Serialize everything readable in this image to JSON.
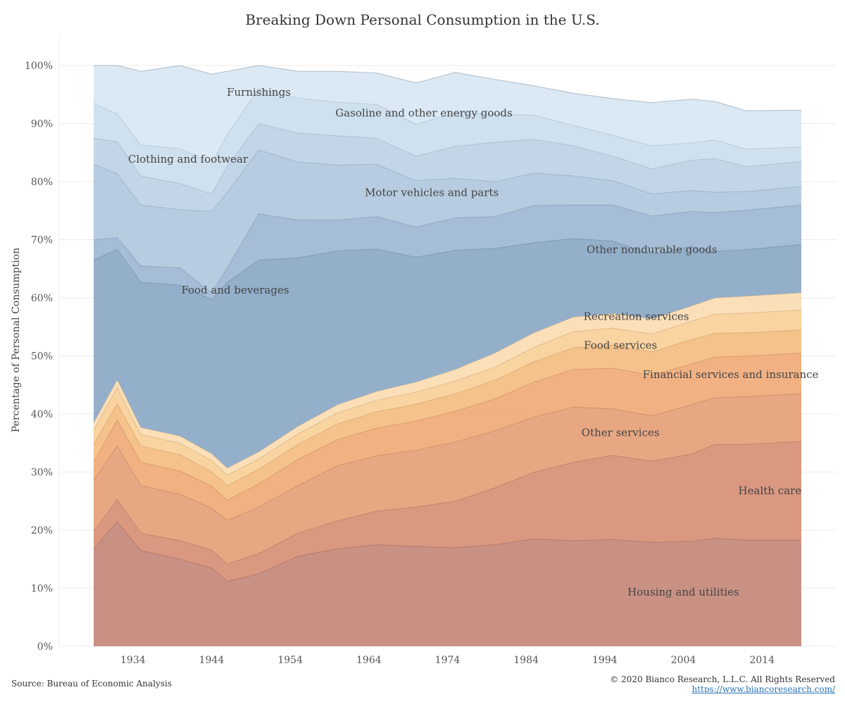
{
  "title": "Breaking Down Personal Consumption in the U.S.",
  "source": "Source: Bureau of Economic Analysis",
  "copyright": "© 2020 Bianco Research, L.L.C. All Rights Reserved",
  "url": "https://www.biancoresearch.com/",
  "chart_data": {
    "type": "area",
    "stacked": true,
    "normalized": true,
    "title": "Breaking Down Personal Consumption in the U.S.",
    "ylabel": "Percentage of Personal Consumption",
    "xlabel": "",
    "xlim": [
      1929,
      2019
    ],
    "ylim": [
      0,
      100
    ],
    "x_ticks": [
      1934,
      1944,
      1954,
      1964,
      1974,
      1984,
      1994,
      2004,
      2014
    ],
    "y_ticks": [
      "0%",
      "10%",
      "20%",
      "30%",
      "40%",
      "50%",
      "60%",
      "70%",
      "80%",
      "90%",
      "100%"
    ],
    "grid": "horizontal",
    "x": [
      1929,
      1932,
      1935,
      1940,
      1944,
      1946,
      1950,
      1955,
      1960,
      1965,
      1970,
      1975,
      1980,
      1985,
      1990,
      1995,
      2000,
      2005,
      2008,
      2012,
      2019
    ],
    "series": [
      {
        "name": "Housing and utilities",
        "color": "#c4887a",
        "values": [
          16.8,
          21.5,
          16.5,
          15.0,
          13.5,
          11.2,
          12.5,
          15.5,
          16.8,
          17.5,
          17.2,
          17.0,
          17.5,
          18.5,
          18.2,
          18.4,
          17.9,
          18.1,
          18.6,
          18.3,
          18.3
        ]
      },
      {
        "name": "Health care",
        "color": "#d78f76",
        "values": [
          3.0,
          3.8,
          3.0,
          3.2,
          3.1,
          3.0,
          3.5,
          4.0,
          4.8,
          5.8,
          6.8,
          8.0,
          9.8,
          11.5,
          13.5,
          14.5,
          14.0,
          15.0,
          16.2,
          16.5,
          17.0
        ]
      },
      {
        "name": "Other services",
        "color": "#e6a078",
        "values": [
          8.8,
          9.2,
          8.2,
          8.0,
          7.2,
          7.5,
          8.0,
          8.2,
          9.5,
          9.5,
          9.8,
          10.2,
          9.8,
          9.5,
          9.5,
          8.0,
          7.8,
          8.5,
          8.0,
          8.2,
          8.2
        ]
      },
      {
        "name": "Financial services and insurance",
        "color": "#f0aa78",
        "values": [
          3.2,
          4.5,
          4.0,
          4.0,
          3.8,
          3.5,
          4.0,
          4.5,
          4.5,
          4.8,
          5.0,
          5.3,
          5.5,
          6.0,
          6.5,
          7.0,
          7.0,
          7.0,
          7.0,
          7.0,
          7.0
        ]
      },
      {
        "name": "Food services",
        "color": "#f5bd82",
        "values": [
          3.0,
          2.8,
          2.8,
          2.8,
          2.5,
          2.5,
          2.5,
          2.6,
          2.7,
          2.8,
          2.9,
          3.0,
          3.2,
          3.5,
          3.7,
          3.9,
          4.0,
          4.2,
          4.1,
          4.0,
          4.0
        ]
      },
      {
        "name": "Recreation services",
        "color": "#f8cf98",
        "values": [
          2.5,
          2.8,
          2.0,
          2.0,
          1.9,
          1.8,
          1.8,
          1.8,
          1.9,
          2.0,
          2.1,
          2.2,
          2.3,
          2.5,
          2.8,
          3.0,
          3.1,
          3.2,
          3.3,
          3.4,
          3.4
        ]
      },
      {
        "name": "Other nondurable goods",
        "color": "#fbdcb2",
        "values": [
          1.2,
          1.3,
          1.2,
          1.2,
          1.2,
          1.2,
          1.2,
          1.3,
          1.4,
          1.5,
          1.7,
          2.0,
          2.4,
          2.5,
          2.5,
          2.5,
          2.6,
          2.6,
          2.8,
          2.9,
          3.0
        ]
      },
      {
        "name": "Food and beverages",
        "color": "#8ba8c6",
        "values": [
          28.0,
          22.5,
          25.0,
          26.0,
          26.5,
          32.0,
          33.0,
          29.0,
          26.5,
          24.5,
          21.5,
          20.5,
          18.0,
          15.5,
          13.5,
          12.5,
          11.0,
          10.3,
          8.0,
          8.0,
          8.3
        ]
      },
      {
        "name": "Motor vehicles and parts",
        "color": "#9db7d2",
        "values": [
          3.5,
          2.0,
          2.8,
          3.0,
          1.2,
          2.5,
          8.0,
          6.5,
          5.3,
          5.6,
          5.2,
          5.6,
          5.5,
          6.4,
          5.8,
          6.2,
          6.7,
          6.0,
          6.7,
          6.8,
          6.8
        ]
      },
      {
        "name": "Clothing and footwear",
        "color": "#b1c8de",
        "values": [
          13.0,
          11.0,
          10.5,
          10.0,
          14.0,
          13.0,
          11.0,
          10.0,
          9.5,
          9.0,
          8.0,
          6.8,
          6.0,
          5.6,
          5.0,
          4.2,
          3.8,
          3.6,
          3.5,
          3.2,
          3.2
        ]
      },
      {
        "name": "Gasoline and other energy goods",
        "color": "#bed3e6",
        "values": [
          4.5,
          5.5,
          5.0,
          4.5,
          3.0,
          4.5,
          4.5,
          5.0,
          5.0,
          4.5,
          4.2,
          5.5,
          6.8,
          5.8,
          5.2,
          4.2,
          4.3,
          5.2,
          5.8,
          4.3,
          4.3
        ]
      },
      {
        "name": "Furnishings",
        "color": "#cbdeee",
        "values": [
          6.0,
          4.8,
          5.3,
          6.0,
          5.3,
          5.5,
          6.0,
          6.0,
          5.8,
          5.8,
          5.5,
          5.8,
          4.8,
          4.2,
          3.5,
          3.6,
          4.0,
          3.0,
          3.2,
          3.0,
          2.5
        ]
      },
      {
        "name": "",
        "color": "#d8e7f3",
        "values": [
          6.5,
          8.3,
          12.7,
          14.3,
          15.3,
          10.8,
          4.0,
          4.6,
          5.3,
          5.4,
          7.1,
          6.9,
          6.0,
          5.0,
          5.5,
          6.3,
          7.4,
          7.5,
          6.6,
          6.6,
          6.3
        ]
      }
    ],
    "labels": [
      {
        "text": "Housing and utilities",
        "x": 2004,
        "y": 8.7
      },
      {
        "text": "Health care",
        "x": 2015,
        "y": 26.2
      },
      {
        "text": "Other services",
        "x": 1996,
        "y": 36.2
      },
      {
        "text": "Financial services and insurance",
        "x": 2010,
        "y": 46.2
      },
      {
        "text": "Food services",
        "x": 1996,
        "y": 51.2
      },
      {
        "text": "Recreation services",
        "x": 1998,
        "y": 56.2
      },
      {
        "text": "Other nondurable goods",
        "x": 2000,
        "y": 67.7
      },
      {
        "text": "Food and beverages",
        "x": 1947,
        "y": 60.7
      },
      {
        "text": "Motor vehicles and parts",
        "x": 1972,
        "y": 77.5
      },
      {
        "text": "Clothing and footwear",
        "x": 1941,
        "y": 83.3
      },
      {
        "text": "Gasoline and other energy goods",
        "x": 1971,
        "y": 91.2
      },
      {
        "text": "Furnishings",
        "x": 1950,
        "y": 94.8
      }
    ]
  }
}
